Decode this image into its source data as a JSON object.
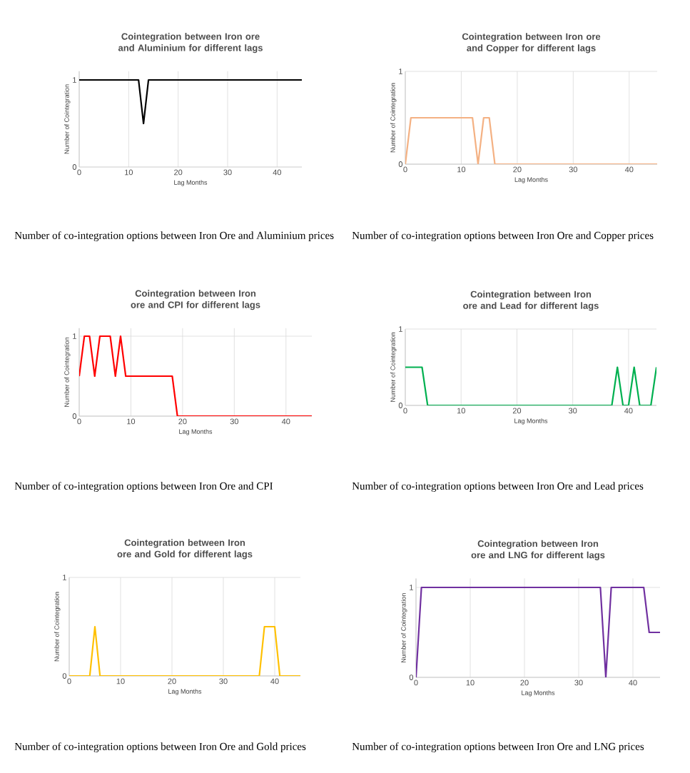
{
  "chart_data": [
    {
      "type": "line",
      "title": "Cointegration between Iron ore and Aluminium for different lags",
      "xlabel": "Lag Months",
      "ylabel": "Number of Cointegration",
      "color": "#000000",
      "x": [
        0,
        12,
        13,
        14,
        45
      ],
      "values": [
        1,
        1,
        0.5,
        1,
        1
      ],
      "xlim": [
        0,
        45
      ],
      "ylim": [
        0,
        1.1
      ],
      "xticks": [
        0,
        10,
        20,
        30,
        40
      ],
      "yticks": [
        0,
        1
      ],
      "grid": "x",
      "annotations": [
        "Number of co-integration options between Iron Ore and Aluminium prices"
      ]
    },
    {
      "type": "line",
      "title": "Cointegration between Iron ore and Copper for different lags",
      "xlabel": "Lag Months",
      "ylabel": "Number of Cointegration",
      "color": "#f4b183",
      "x": [
        0,
        1,
        12,
        13,
        14,
        15,
        16,
        45
      ],
      "values": [
        0,
        0.5,
        0.5,
        0,
        0.5,
        0.5,
        0,
        0
      ],
      "xlim": [
        0,
        45
      ],
      "ylim": [
        0,
        1
      ],
      "xticks": [
        0,
        10,
        20,
        30,
        40
      ],
      "yticks": [
        0,
        1
      ],
      "grid": true,
      "annotations": [
        "Number of co-integration options between Iron Ore and Copper prices"
      ]
    },
    {
      "type": "line",
      "title": "Cointegration between Iron ore and CPI for different lags",
      "xlabel": "Lag Months",
      "ylabel": "Number of Cointegration",
      "color": "#ff0000",
      "x": [
        0,
        1,
        2,
        3,
        4,
        5,
        6,
        7,
        8,
        9,
        18,
        19,
        45
      ],
      "values": [
        0.5,
        1,
        1,
        0.5,
        1,
        1,
        1,
        0.5,
        1,
        0.5,
        0.5,
        0,
        0
      ],
      "xlim": [
        0,
        45
      ],
      "ylim": [
        0,
        1.1
      ],
      "xticks": [
        0,
        10,
        20,
        30,
        40
      ],
      "yticks": [
        0,
        1
      ],
      "grid": true,
      "annotations": [
        "Number of co-integration options between Iron Ore and CPI"
      ]
    },
    {
      "type": "line",
      "title": "Cointegration between Iron ore and Lead for different lags",
      "xlabel": "Lag Months",
      "ylabel": "Number of Cointegration",
      "color": "#00b050",
      "x": [
        0,
        3,
        4,
        37,
        38,
        39,
        40,
        41,
        42,
        43,
        44,
        45
      ],
      "values": [
        0.5,
        0.5,
        0,
        0,
        0.5,
        0,
        0,
        0.5,
        0,
        0,
        0,
        0.5
      ],
      "xlim": [
        0,
        45
      ],
      "ylim": [
        0,
        1
      ],
      "xticks": [
        0,
        10,
        20,
        30,
        40
      ],
      "yticks": [
        0,
        1
      ],
      "grid": true,
      "annotations": [
        "Number of co-integration options between Iron Ore and Lead prices"
      ]
    },
    {
      "type": "line",
      "title": "Cointegration between Iron ore and Gold for different lags",
      "xlabel": "Lag Months",
      "ylabel": "Number of Cointegration",
      "color": "#ffc000",
      "x": [
        0,
        4,
        5,
        6,
        37,
        38,
        39,
        40,
        41,
        45
      ],
      "values": [
        0,
        0,
        0.5,
        0,
        0,
        0.5,
        0.5,
        0.5,
        0,
        0
      ],
      "xlim": [
        0,
        45
      ],
      "ylim": [
        0,
        1
      ],
      "xticks": [
        0,
        10,
        20,
        30,
        40
      ],
      "yticks": [
        0,
        1
      ],
      "grid": true,
      "annotations": [
        "Number of co-integration options between Iron Ore and Gold prices"
      ]
    },
    {
      "type": "line",
      "title": "Cointegration between Iron ore and LNG for different lags",
      "xlabel": "Lag Months",
      "ylabel": "Number of Cointegration",
      "color": "#7030a0",
      "x": [
        0,
        1,
        34,
        35,
        36,
        42,
        43,
        44,
        45
      ],
      "values": [
        0,
        1,
        1,
        0,
        1,
        1,
        0.5,
        0.5,
        0.5
      ],
      "xlim": [
        0,
        45
      ],
      "ylim": [
        0,
        1.1
      ],
      "xticks": [
        0,
        10,
        20,
        30,
        40
      ],
      "yticks": [
        0,
        1
      ],
      "grid": true,
      "annotations": [
        "Number of co-integration options between Iron Ore and LNG prices"
      ]
    }
  ]
}
